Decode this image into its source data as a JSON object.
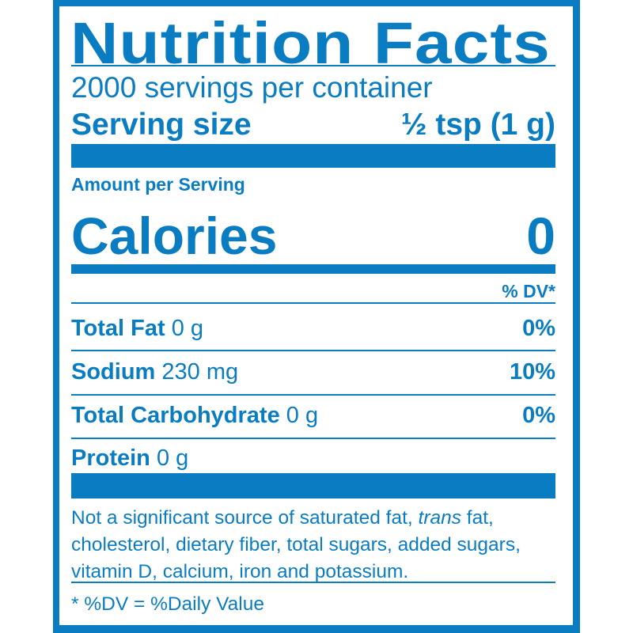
{
  "title": "Nutrition Facts",
  "servings_per_container": "2000 servings per container",
  "serving_size": {
    "label": "Serving size",
    "value": "½ tsp (1 g)"
  },
  "amount_per_serving": "Amount per Serving",
  "calories": {
    "label": "Calories",
    "value": "0"
  },
  "dv_header": "% DV*",
  "nutrients": [
    {
      "name": "Total Fat",
      "amount": "0 g",
      "dv": "0%"
    },
    {
      "name": "Sodium",
      "amount": "230 mg",
      "dv": "10%"
    },
    {
      "name": "Total Carbohydrate",
      "amount": "0 g",
      "dv": "0%"
    },
    {
      "name": "Protein",
      "amount": "0 g",
      "dv": ""
    }
  ],
  "footnote": {
    "before": "Not a significant source of saturated fat, ",
    "italic": "trans",
    "after": " fat, cholesterol, dietary fiber, total sugars, added sugars, vitamin D, calcium, iron and potassium."
  },
  "dv_note": "* %DV = %Daily Value",
  "colors": {
    "primary": "#0a7cc2",
    "background": "#ffffff"
  }
}
